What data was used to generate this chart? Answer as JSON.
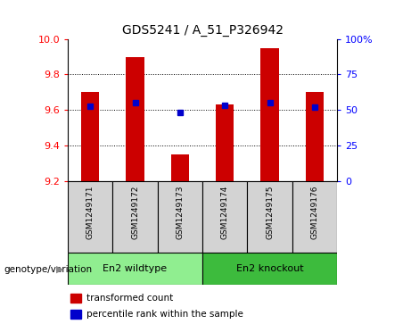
{
  "title": "GDS5241 / A_51_P326942",
  "samples": [
    "GSM1249171",
    "GSM1249172",
    "GSM1249173",
    "GSM1249174",
    "GSM1249175",
    "GSM1249176"
  ],
  "bar_values": [
    9.7,
    9.9,
    9.35,
    9.63,
    9.95,
    9.7
  ],
  "bar_baseline": 9.2,
  "percentile_values": [
    9.62,
    9.64,
    9.585,
    9.625,
    9.64,
    9.615
  ],
  "bar_color": "#cc0000",
  "percentile_color": "#0000cc",
  "ylim": [
    9.2,
    10.0
  ],
  "yticks": [
    9.2,
    9.4,
    9.6,
    9.8,
    10.0
  ],
  "grid_lines": [
    9.4,
    9.6,
    9.8
  ],
  "right_ylim": [
    0,
    100
  ],
  "right_yticks": [
    0,
    25,
    50,
    75,
    100
  ],
  "right_yticklabels": [
    "0",
    "25",
    "50",
    "75",
    "100%"
  ],
  "groups": [
    {
      "label": "En2 wildtype",
      "indices": [
        0,
        1,
        2
      ],
      "color": "#90ee90"
    },
    {
      "label": "En2 knockout",
      "indices": [
        3,
        4,
        5
      ],
      "color": "#3dbb3d"
    }
  ],
  "group_label_prefix": "genotype/variation",
  "legend_items": [
    {
      "color": "#cc0000",
      "label": "transformed count"
    },
    {
      "color": "#0000cc",
      "label": "percentile rank within the sample"
    }
  ],
  "sample_box_color": "#d3d3d3",
  "bar_width": 0.4
}
